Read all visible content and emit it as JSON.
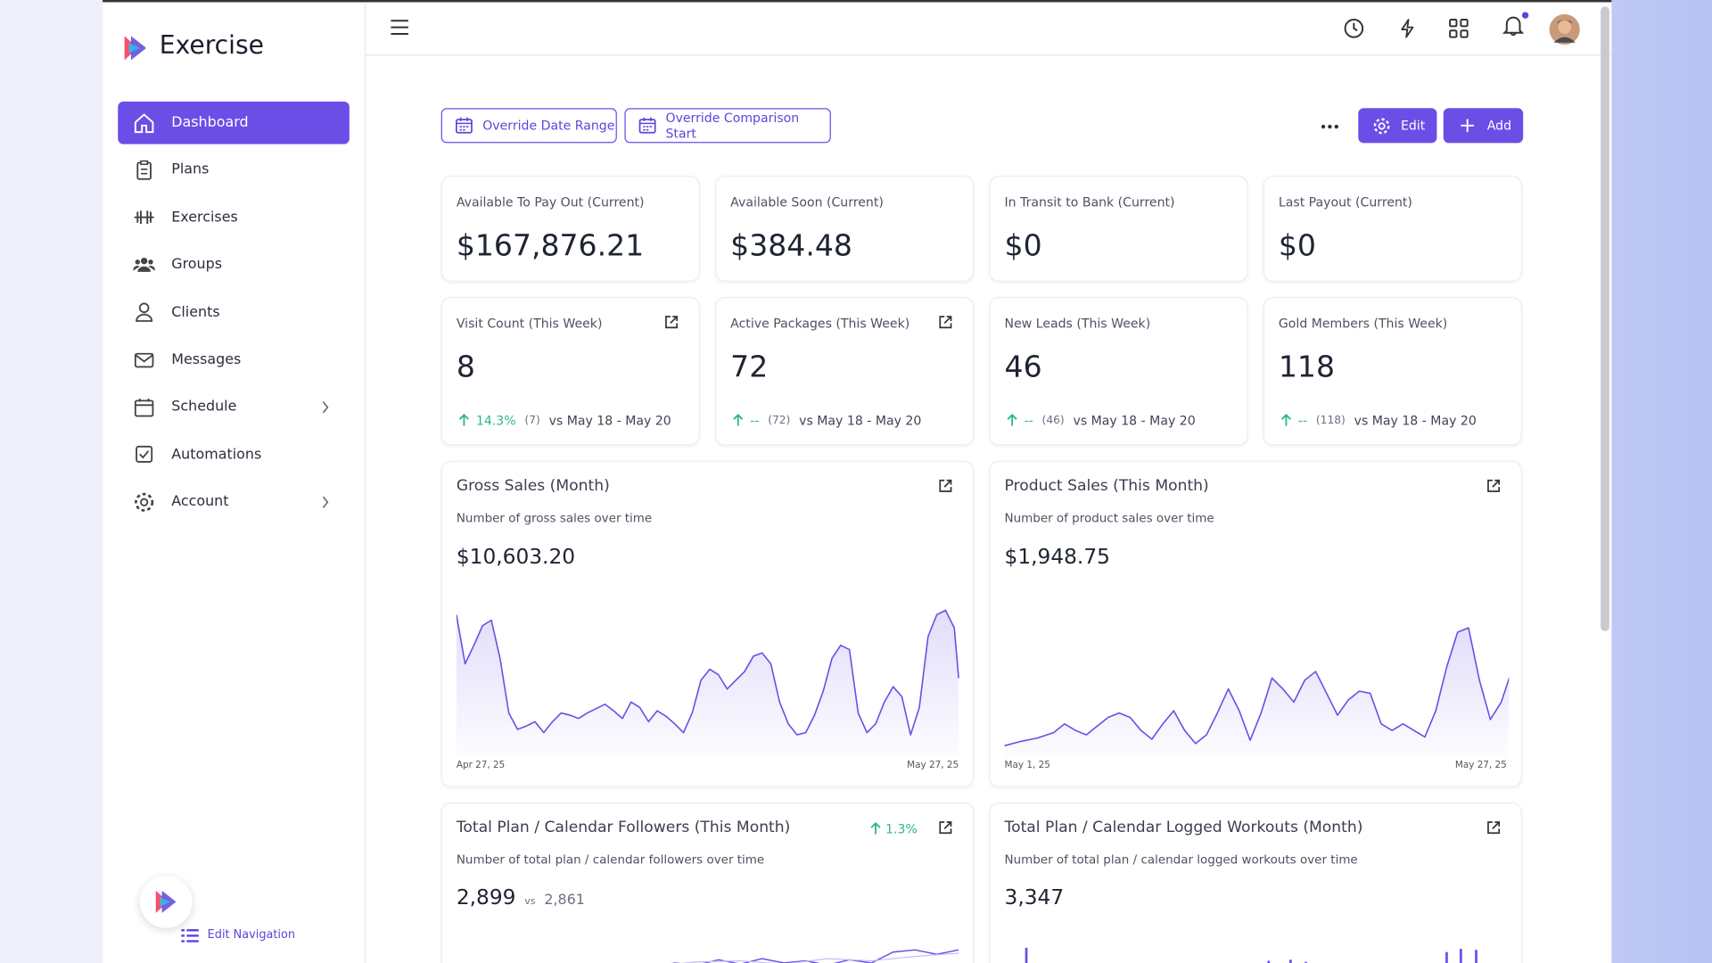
{
  "brand": "Exercise",
  "nav": [
    {
      "label": "Dashboard"
    },
    {
      "label": "Plans"
    },
    {
      "label": "Exercises"
    },
    {
      "label": "Groups"
    },
    {
      "label": "Clients"
    },
    {
      "label": "Messages"
    },
    {
      "label": "Schedule"
    },
    {
      "label": "Automations"
    },
    {
      "label": "Account"
    }
  ],
  "edit_navigation": "Edit Navigation",
  "toolbar": {
    "date_range": "Override Date Range",
    "comparison": "Override Comparison Start",
    "edit": "Edit",
    "add": "Add"
  },
  "stat_cards": [
    {
      "title": "Available To Pay Out (Current)",
      "value": "$167,876.21"
    },
    {
      "title": "Available Soon (Current)",
      "value": "$384.48"
    },
    {
      "title": "In Transit to Bank (Current)",
      "value": "$0"
    },
    {
      "title": "Last Payout (Current)",
      "value": "$0"
    }
  ],
  "metric_cards": [
    {
      "title": "Visit Count (This Week)",
      "value": "8",
      "change": "14.3%",
      "previous": "(7)",
      "comparison": "vs May 18 - May 20"
    },
    {
      "title": "Active Packages (This Week)",
      "value": "72",
      "change": "--",
      "previous": "(72)",
      "comparison": "vs May 18 - May 20"
    },
    {
      "title": "New Leads (This Week)",
      "value": "46",
      "change": "--",
      "previous": "(46)",
      "comparison": "vs May 18 - May 20"
    },
    {
      "title": "Gold Members (This Week)",
      "value": "118",
      "change": "--",
      "previous": "(118)",
      "comparison": "vs May 18 - May 20"
    }
  ],
  "chart_cards": [
    {
      "title": "Gross Sales (Month)",
      "subtitle": "Number of gross sales over time",
      "value": "$10,603.20",
      "start": "Apr 27, 25",
      "end": "May 27, 25"
    },
    {
      "title": "Product Sales (This Month)",
      "subtitle": "Number of product sales over time",
      "value": "$1,948.75",
      "start": "May 1, 25",
      "end": "May 27, 25"
    }
  ],
  "bottom_cards": [
    {
      "title": "Total Plan / Calendar Followers (This Month)",
      "change": "1.3%",
      "subtitle": "Number of total plan / calendar followers over time",
      "value": "2,899",
      "vs": "vs",
      "previous": "2,861"
    },
    {
      "title": "Total Plan / Calendar Logged Workouts (Month)",
      "subtitle": "Number of total plan / calendar logged workouts over time",
      "value": "3,347"
    }
  ]
}
